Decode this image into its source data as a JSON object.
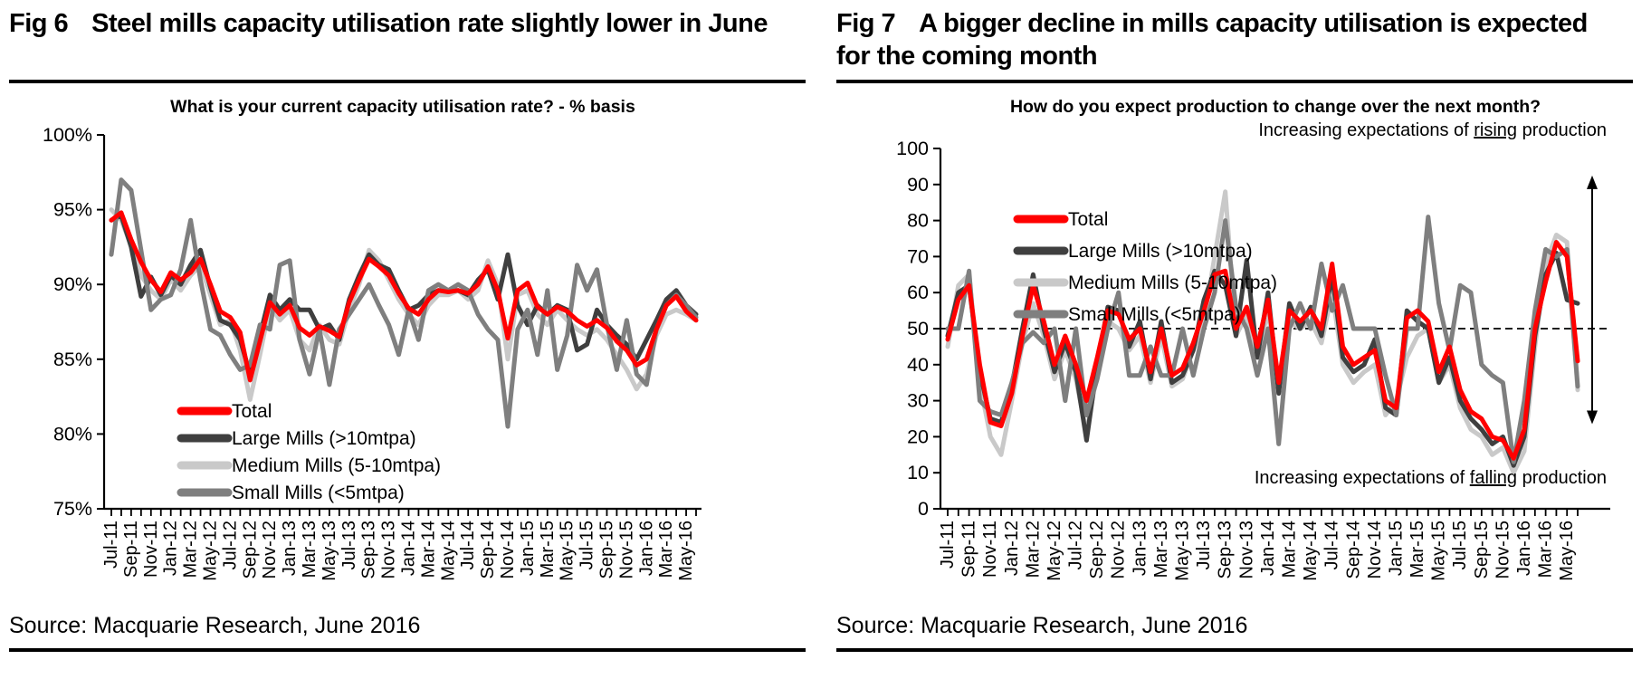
{
  "figures": [
    {
      "fig_label": "Fig 6",
      "heading": "Steel mills capacity utilisation rate slightly lower in June",
      "source": "Source: Macquarie Research, June 2016"
    },
    {
      "fig_label": "Fig 7",
      "heading": "A bigger decline in mills capacity utilisation is expected for the coming month",
      "source": "Source: Macquarie Research, June 2016"
    }
  ],
  "chart_data": [
    {
      "type": "line",
      "title": "What is your current capacity utilisation rate? - % basis",
      "x": [
        "Jul-11",
        "Aug-11",
        "Sep-11",
        "Oct-11",
        "Nov-11",
        "Dec-11",
        "Jan-12",
        "Feb-12",
        "Mar-12",
        "Apr-12",
        "May-12",
        "Jun-12",
        "Jul-12",
        "Aug-12",
        "Sep-12",
        "Oct-12",
        "Nov-12",
        "Dec-12",
        "Jan-13",
        "Feb-13",
        "Mar-13",
        "Apr-13",
        "May-13",
        "Jun-13",
        "Jul-13",
        "Aug-13",
        "Sep-13",
        "Oct-13",
        "Nov-13",
        "Dec-13",
        "Jan-14",
        "Feb-14",
        "Mar-14",
        "Apr-14",
        "May-14",
        "Jun-14",
        "Jul-14",
        "Aug-14",
        "Sep-14",
        "Oct-14",
        "Nov-14",
        "Dec-14",
        "Jan-15",
        "Feb-15",
        "Mar-15",
        "Apr-15",
        "May-15",
        "Jun-15",
        "Jul-15",
        "Aug-15",
        "Sep-15",
        "Oct-15",
        "Nov-15",
        "Dec-15",
        "Jan-16",
        "Feb-16",
        "Mar-16",
        "Apr-16",
        "May-16",
        "Jun-16"
      ],
      "x_tick_label_every": 2,
      "ylim": [
        75,
        100
      ],
      "y_step": 5,
      "y_suffix": "%",
      "grid": false,
      "legend_position": "bottom-left",
      "series": [
        {
          "name": "Total",
          "color": "#FF0000",
          "values": [
            94.3,
            94.8,
            93.0,
            91.5,
            90.3,
            89.5,
            90.8,
            90.3,
            90.8,
            91.7,
            90.0,
            88.2,
            87.8,
            86.8,
            83.6,
            86.2,
            88.8,
            88.0,
            88.6,
            87.1,
            86.6,
            87.2,
            86.9,
            86.5,
            88.8,
            90.3,
            91.7,
            91.2,
            90.6,
            89.4,
            88.4,
            88.0,
            89.0,
            89.6,
            89.5,
            89.6,
            89.4,
            90.0,
            91.2,
            89.6,
            86.4,
            89.6,
            90.1,
            88.5,
            88.0,
            88.5,
            88.2,
            87.6,
            87.2,
            87.6,
            87.1,
            86.2,
            85.6,
            84.6,
            85.0,
            87.0,
            88.6,
            89.2,
            88.2,
            87.6
          ]
        },
        {
          "name": "Large Mills (>10mtpa)",
          "color": "#3F3F3F",
          "values": [
            94.3,
            94.6,
            92.5,
            89.2,
            90.5,
            89.3,
            90.6,
            90.0,
            91.3,
            92.3,
            89.8,
            87.6,
            87.3,
            86.3,
            84.0,
            86.6,
            89.3,
            88.3,
            89.0,
            88.3,
            88.3,
            87.0,
            87.3,
            86.3,
            89.0,
            90.6,
            92.0,
            91.3,
            91.0,
            89.6,
            88.3,
            88.6,
            89.3,
            89.6,
            89.6,
            89.6,
            89.3,
            90.3,
            91.0,
            89.0,
            92.0,
            88.6,
            87.3,
            88.6,
            88.0,
            88.6,
            88.3,
            85.6,
            86.0,
            88.3,
            87.3,
            86.6,
            86.0,
            85.0,
            86.3,
            87.6,
            89.0,
            89.6,
            88.6,
            88.0
          ]
        },
        {
          "name": "Medium Mills (5-10mtpa)",
          "color": "#C9C9C9",
          "values": [
            95.0,
            94.3,
            92.6,
            90.6,
            89.6,
            89.0,
            90.3,
            89.6,
            90.6,
            91.3,
            89.3,
            87.3,
            87.6,
            85.6,
            82.3,
            85.3,
            88.6,
            87.6,
            88.3,
            86.3,
            85.6,
            87.3,
            86.3,
            86.0,
            88.3,
            90.0,
            92.3,
            91.6,
            90.3,
            89.0,
            88.0,
            87.3,
            88.6,
            89.3,
            89.3,
            89.6,
            89.0,
            89.6,
            91.6,
            90.0,
            85.0,
            89.3,
            89.6,
            88.0,
            87.3,
            88.3,
            87.6,
            87.0,
            86.6,
            87.0,
            86.3,
            85.3,
            84.3,
            83.0,
            84.0,
            86.6,
            88.0,
            88.3,
            88.0,
            87.6
          ]
        },
        {
          "name": "Small Mills (<5mtpa)",
          "color": "#7F7F7F",
          "values": [
            92.0,
            97.0,
            96.3,
            92.3,
            88.3,
            89.0,
            89.3,
            91.0,
            94.3,
            90.3,
            87.0,
            86.6,
            85.3,
            84.3,
            84.6,
            87.3,
            87.0,
            91.3,
            91.6,
            86.3,
            84.0,
            87.0,
            83.3,
            87.0,
            88.0,
            89.0,
            90.0,
            88.6,
            87.3,
            85.3,
            88.3,
            86.3,
            89.6,
            90.0,
            89.6,
            90.0,
            89.6,
            88.0,
            87.0,
            86.3,
            80.5,
            87.0,
            88.3,
            85.3,
            89.6,
            84.3,
            86.6,
            91.3,
            89.6,
            91.0,
            87.3,
            84.3,
            87.6,
            84.0,
            83.3,
            87.0,
            88.6,
            89.3,
            88.6,
            87.8
          ]
        }
      ]
    },
    {
      "type": "line",
      "title": "How do you expect production to change over the next month?",
      "x": [
        "Jul-11",
        "Aug-11",
        "Sep-11",
        "Oct-11",
        "Nov-11",
        "Dec-11",
        "Jan-12",
        "Feb-12",
        "Mar-12",
        "Apr-12",
        "May-12",
        "Jun-12",
        "Jul-12",
        "Aug-12",
        "Sep-12",
        "Oct-12",
        "Nov-12",
        "Dec-12",
        "Jan-13",
        "Feb-13",
        "Mar-13",
        "Apr-13",
        "May-13",
        "Jun-13",
        "Jul-13",
        "Aug-13",
        "Sep-13",
        "Oct-13",
        "Nov-13",
        "Dec-13",
        "Jan-14",
        "Feb-14",
        "Mar-14",
        "Apr-14",
        "May-14",
        "Jun-14",
        "Jul-14",
        "Aug-14",
        "Sep-14",
        "Oct-14",
        "Nov-14",
        "Dec-14",
        "Jan-15",
        "Feb-15",
        "Mar-15",
        "Apr-15",
        "May-15",
        "Jun-15",
        "Jul-15",
        "Aug-15",
        "Sep-15",
        "Oct-15",
        "Nov-15",
        "Dec-15",
        "Jan-16",
        "Feb-16",
        "Mar-16",
        "Apr-16",
        "May-16",
        "Jun-16"
      ],
      "x_tick_label_every": 2,
      "ylim": [
        0,
        100
      ],
      "y_step": 10,
      "y_suffix": "",
      "grid": false,
      "legend_position": "top-left",
      "reference_line": {
        "y": 50,
        "style": "dashed"
      },
      "annotations": {
        "top": {
          "prefix": "Increasing expectations of ",
          "underlined": "rising",
          "suffix": " production"
        },
        "bottom": {
          "prefix": "Increasing expectations of ",
          "underlined": "falling",
          "suffix": " production"
        },
        "arrow": {
          "from": 92,
          "to": 24
        }
      },
      "series": [
        {
          "name": "Total",
          "color": "#FF0000",
          "values": [
            47,
            58,
            62,
            40,
            24,
            23,
            32,
            48,
            62,
            52,
            40,
            48,
            40,
            30,
            42,
            55,
            54,
            47,
            50,
            38,
            50,
            37,
            39,
            46,
            55,
            65,
            66,
            50,
            56,
            45,
            58,
            35,
            55,
            52,
            55,
            50,
            68,
            45,
            40,
            42,
            44,
            30,
            28,
            53,
            55,
            52,
            38,
            45,
            33,
            27,
            25,
            20,
            19,
            14,
            22,
            50,
            63,
            74,
            70,
            41
          ]
        },
        {
          "name": "Large Mills (>10mtpa)",
          "color": "#3F3F3F",
          "values": [
            48,
            60,
            62,
            38,
            25,
            24,
            34,
            50,
            65,
            50,
            38,
            46,
            38,
            19,
            40,
            56,
            55,
            45,
            52,
            36,
            52,
            35,
            37,
            44,
            58,
            66,
            62,
            48,
            69,
            42,
            60,
            32,
            57,
            50,
            56,
            48,
            65,
            42,
            38,
            40,
            47,
            28,
            26,
            55,
            52,
            50,
            35,
            42,
            30,
            25,
            22,
            18,
            20,
            12,
            20,
            48,
            65,
            71,
            58,
            57
          ]
        },
        {
          "name": "Medium Mills (5-10mtpa)",
          "color": "#C9C9C9",
          "values": [
            45,
            62,
            65,
            35,
            20,
            15,
            30,
            46,
            57,
            48,
            36,
            44,
            36,
            21,
            38,
            52,
            50,
            44,
            48,
            35,
            48,
            34,
            36,
            44,
            52,
            70,
            88,
            48,
            54,
            42,
            55,
            34,
            52,
            50,
            52,
            46,
            60,
            40,
            35,
            38,
            40,
            26,
            30,
            42,
            48,
            50,
            35,
            40,
            28,
            22,
            20,
            15,
            17,
            10,
            16,
            45,
            68,
            76,
            74,
            33
          ]
        },
        {
          "name": "Small Mills (<5mtpa)",
          "color": "#7F7F7F",
          "values": [
            50,
            50,
            66,
            30,
            27,
            26,
            35,
            46,
            49,
            46,
            50,
            30,
            50,
            26,
            36,
            50,
            60,
            37,
            37,
            45,
            37,
            37,
            50,
            37,
            50,
            60,
            80,
            56,
            50,
            37,
            50,
            18,
            50,
            57,
            50,
            68,
            55,
            62,
            50,
            50,
            50,
            37,
            26,
            50,
            50,
            81,
            57,
            44,
            62,
            60,
            40,
            37,
            35,
            13,
            30,
            55,
            72,
            70,
            72,
            34
          ]
        }
      ]
    }
  ]
}
